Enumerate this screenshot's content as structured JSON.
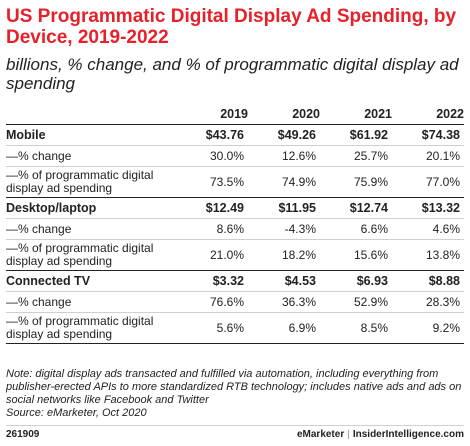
{
  "title": "US Programmatic Digital Display Ad Spending, by Device, 2019-2022",
  "subtitle": "billions, % change, and % of programmatic digital display ad spending",
  "chart_data": {
    "type": "table",
    "columns": [
      "2019",
      "2020",
      "2021",
      "2022"
    ],
    "groups": [
      {
        "name": "Mobile",
        "values": [
          "$43.76",
          "$49.26",
          "$61.92",
          "$74.38"
        ],
        "rows": [
          {
            "label": "—% change",
            "values": [
              "30.0%",
              "12.6%",
              "25.7%",
              "20.1%"
            ]
          },
          {
            "label": "—% of programmatic digital display ad spending",
            "values": [
              "73.5%",
              "74.9%",
              "75.9%",
              "77.0%"
            ]
          }
        ]
      },
      {
        "name": "Desktop/laptop",
        "values": [
          "$12.49",
          "$11.95",
          "$12.74",
          "$13.32"
        ],
        "rows": [
          {
            "label": "—% change",
            "values": [
              "8.6%",
              "-4.3%",
              "6.6%",
              "4.6%"
            ]
          },
          {
            "label": "—% of programmatic digital display ad spending",
            "values": [
              "21.0%",
              "18.2%",
              "15.6%",
              "13.8%"
            ]
          }
        ]
      },
      {
        "name": "Connected TV",
        "values": [
          "$3.32",
          "$4.53",
          "$6.93",
          "$8.88"
        ],
        "rows": [
          {
            "label": "—% change",
            "values": [
              "76.6%",
              "36.3%",
              "52.9%",
              "28.3%"
            ]
          },
          {
            "label": "—% of programmatic digital display ad spending",
            "values": [
              "5.6%",
              "6.9%",
              "8.5%",
              "9.2%"
            ]
          }
        ]
      }
    ]
  },
  "note": "Note: digital display ads transacted and fulfilled via automation, including everything from publisher-erected APIs to more standardized RTB technology; includes native ads and ads on social networks like Facebook and Twitter",
  "source": "Source: eMarketer, Oct 2020",
  "footer": {
    "id": "261909",
    "brand": "eMarketer",
    "separator": "|",
    "brand2": "InsiderIntelligence.com"
  },
  "colors": {
    "title": "#e8202a",
    "text": "#222222",
    "rule": "#cfcfcf"
  }
}
